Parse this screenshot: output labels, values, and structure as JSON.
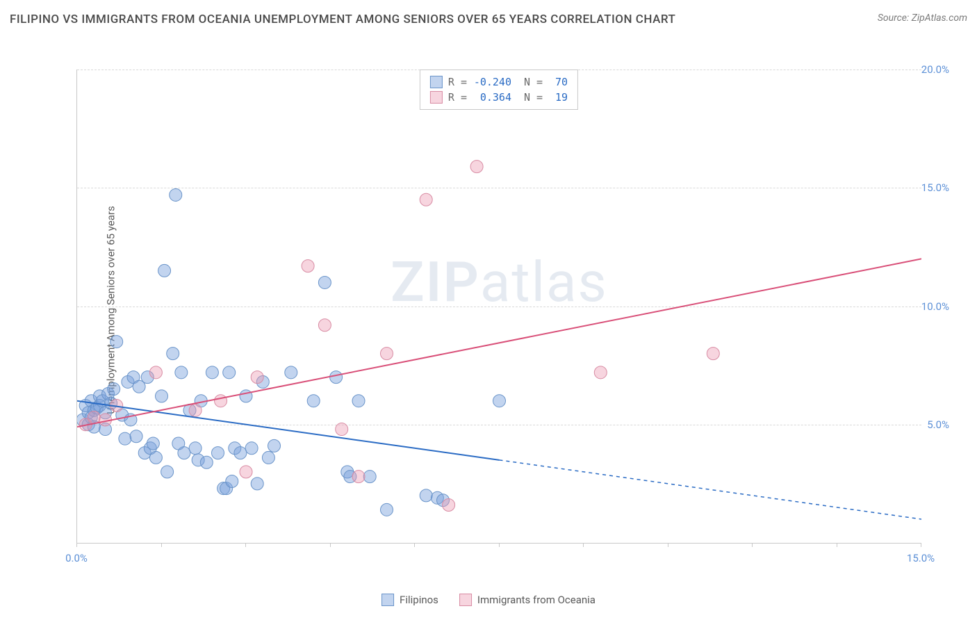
{
  "header": {
    "title": "FILIPINO VS IMMIGRANTS FROM OCEANIA UNEMPLOYMENT AMONG SENIORS OVER 65 YEARS CORRELATION CHART",
    "source": "Source: ZipAtlas.com"
  },
  "chart": {
    "type": "scatter",
    "y_axis_label": "Unemployment Among Seniors over 65 years",
    "watermark": "ZIPatlas",
    "background_color": "#ffffff",
    "grid_color": "#d8d8d8",
    "axis_color": "#c8c8c8",
    "title_fontsize": 17,
    "label_fontsize": 15,
    "tick_fontsize": 15,
    "xlim": [
      0,
      15
    ],
    "ylim": [
      0,
      20
    ],
    "x_ticks": [
      0,
      1.5,
      3,
      4.5,
      6,
      7.5,
      9,
      10.5,
      12,
      13.5,
      15
    ],
    "x_tick_labels": {
      "0": "0.0%",
      "15": "15.0%"
    },
    "y_ticks": [
      5,
      10,
      15,
      20
    ],
    "y_tick_labels": {
      "5": "5.0%",
      "10": "10.0%",
      "15": "15.0%",
      "20": "20.0%"
    },
    "series": [
      {
        "name": "Filipinos",
        "color_fill": "rgba(120,160,220,0.45)",
        "color_stroke": "#6a94c9",
        "line_color": "#2a6bc4",
        "marker_radius": 9,
        "r_value": "-0.240",
        "n_value": "70",
        "trend": {
          "x1": 0,
          "y1": 6.0,
          "x2": 7.5,
          "y2": 3.5,
          "x2_dash": 15,
          "y2_dash": 1.0
        },
        "points": [
          [
            0.1,
            5.2
          ],
          [
            0.15,
            5.8
          ],
          [
            0.2,
            5.0
          ],
          [
            0.2,
            5.5
          ],
          [
            0.25,
            5.3
          ],
          [
            0.25,
            6.0
          ],
          [
            0.3,
            5.6
          ],
          [
            0.3,
            4.9
          ],
          [
            0.35,
            5.7
          ],
          [
            0.4,
            6.2
          ],
          [
            0.4,
            5.8
          ],
          [
            0.45,
            6.0
          ],
          [
            0.5,
            5.5
          ],
          [
            0.5,
            4.8
          ],
          [
            0.55,
            6.3
          ],
          [
            0.6,
            5.9
          ],
          [
            0.65,
            6.5
          ],
          [
            0.7,
            8.5
          ],
          [
            0.8,
            5.4
          ],
          [
            0.85,
            4.4
          ],
          [
            0.9,
            6.8
          ],
          [
            0.95,
            5.2
          ],
          [
            1.0,
            7.0
          ],
          [
            1.05,
            4.5
          ],
          [
            1.1,
            6.6
          ],
          [
            1.2,
            3.8
          ],
          [
            1.25,
            7.0
          ],
          [
            1.3,
            4.0
          ],
          [
            1.35,
            4.2
          ],
          [
            1.4,
            3.6
          ],
          [
            1.5,
            6.2
          ],
          [
            1.55,
            11.5
          ],
          [
            1.6,
            3.0
          ],
          [
            1.7,
            8.0
          ],
          [
            1.75,
            14.7
          ],
          [
            1.8,
            4.2
          ],
          [
            1.85,
            7.2
          ],
          [
            1.9,
            3.8
          ],
          [
            2.0,
            5.6
          ],
          [
            2.1,
            4.0
          ],
          [
            2.15,
            3.5
          ],
          [
            2.2,
            6.0
          ],
          [
            2.3,
            3.4
          ],
          [
            2.4,
            7.2
          ],
          [
            2.5,
            3.8
          ],
          [
            2.6,
            2.3
          ],
          [
            2.65,
            2.3
          ],
          [
            2.7,
            7.2
          ],
          [
            2.75,
            2.6
          ],
          [
            2.8,
            4.0
          ],
          [
            2.9,
            3.8
          ],
          [
            3.0,
            6.2
          ],
          [
            3.1,
            4.0
          ],
          [
            3.2,
            2.5
          ],
          [
            3.3,
            6.8
          ],
          [
            3.4,
            3.6
          ],
          [
            3.5,
            4.1
          ],
          [
            3.8,
            7.2
          ],
          [
            4.2,
            6.0
          ],
          [
            4.4,
            11.0
          ],
          [
            4.6,
            7.0
          ],
          [
            4.8,
            3.0
          ],
          [
            4.85,
            2.8
          ],
          [
            5.0,
            6.0
          ],
          [
            5.2,
            2.8
          ],
          [
            5.5,
            1.4
          ],
          [
            6.2,
            2.0
          ],
          [
            6.4,
            1.9
          ],
          [
            6.5,
            1.8
          ],
          [
            7.5,
            6.0
          ]
        ]
      },
      {
        "name": "Immigrants from Oceania",
        "color_fill": "rgba(235,150,175,0.40)",
        "color_stroke": "#d88ba3",
        "line_color": "#d94f78",
        "marker_radius": 9,
        "r_value": "0.364",
        "n_value": "19",
        "trend": {
          "x1": 0,
          "y1": 4.9,
          "x2": 15,
          "y2": 12.0
        },
        "points": [
          [
            0.15,
            5.0
          ],
          [
            0.3,
            5.3
          ],
          [
            0.5,
            5.2
          ],
          [
            0.7,
            5.8
          ],
          [
            1.4,
            7.2
          ],
          [
            2.1,
            5.6
          ],
          [
            2.55,
            6.0
          ],
          [
            3.0,
            3.0
          ],
          [
            3.2,
            7.0
          ],
          [
            4.1,
            11.7
          ],
          [
            4.4,
            9.2
          ],
          [
            4.7,
            4.8
          ],
          [
            5.0,
            2.8
          ],
          [
            5.5,
            8.0
          ],
          [
            6.2,
            14.5
          ],
          [
            6.6,
            1.6
          ],
          [
            7.1,
            15.9
          ],
          [
            9.3,
            7.2
          ],
          [
            11.3,
            8.0
          ]
        ]
      }
    ],
    "stat_label_color": "#2a6bc4",
    "stat_text_color": "#6a6a6a"
  },
  "legend_bottom": {
    "items": [
      {
        "label": "Filipinos",
        "fill": "rgba(120,160,220,0.45)",
        "stroke": "#6a94c9"
      },
      {
        "label": "Immigrants from Oceania",
        "fill": "rgba(235,150,175,0.40)",
        "stroke": "#d88ba3"
      }
    ]
  }
}
